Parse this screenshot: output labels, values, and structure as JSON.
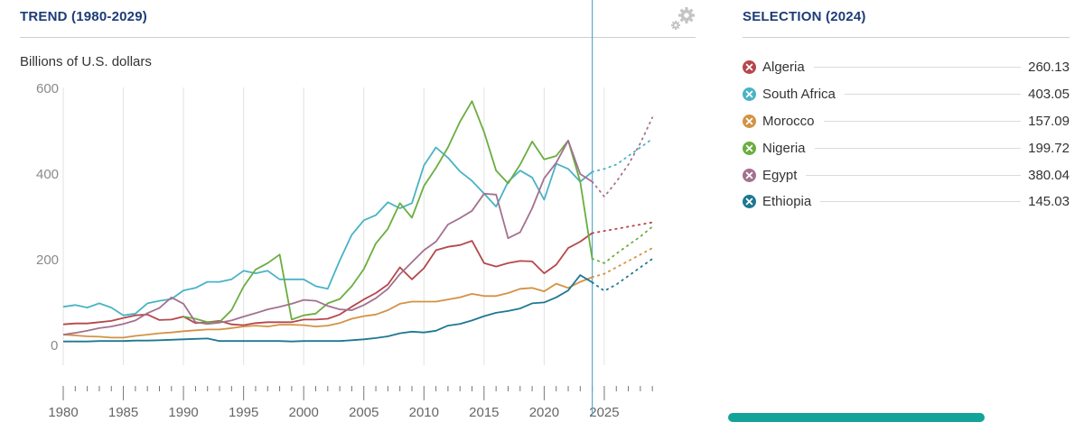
{
  "trend_panel": {
    "title": "TREND (1980-2029)",
    "unit_label": "Billions of U.S. dollars",
    "settings_icon": "gears-icon"
  },
  "selection_panel": {
    "title": "SELECTION (2024)",
    "items": [
      {
        "name": "Algeria",
        "value": "260.13",
        "color": "#b5474b",
        "icon": "remove-x-icon"
      },
      {
        "name": "South Africa",
        "value": "403.05",
        "color": "#49b3c6",
        "icon": "remove-x-icon"
      },
      {
        "name": "Morocco",
        "value": "157.09",
        "color": "#d39245",
        "icon": "remove-x-icon"
      },
      {
        "name": "Nigeria",
        "value": "199.72",
        "color": "#6aae3e",
        "icon": "remove-x-icon"
      },
      {
        "name": "Egypt",
        "value": "380.04",
        "color": "#a3718f",
        "icon": "remove-x-icon"
      },
      {
        "name": "Ethiopia",
        "value": "145.03",
        "color": "#1d7891",
        "icon": "remove-x-icon"
      }
    ]
  },
  "chart_data": {
    "type": "line",
    "title": "TREND (1980-2029)",
    "ylabel": "Billions of U.S. dollars",
    "xlabel": "",
    "ylim": [
      0,
      600
    ],
    "yticks": [
      0,
      200,
      400,
      600
    ],
    "xticks": [
      1980,
      1985,
      1990,
      1995,
      2000,
      2005,
      2010,
      2015,
      2020,
      2025
    ],
    "x_range": [
      1980,
      2029
    ],
    "selected_year": 2024,
    "projection_start": 2024,
    "grid": "vertical",
    "legend_position": "right",
    "x": [
      1980,
      1981,
      1982,
      1983,
      1984,
      1985,
      1986,
      1987,
      1988,
      1989,
      1990,
      1991,
      1992,
      1993,
      1994,
      1995,
      1996,
      1997,
      1998,
      1999,
      2000,
      2001,
      2002,
      2003,
      2004,
      2005,
      2006,
      2007,
      2008,
      2009,
      2010,
      2011,
      2012,
      2013,
      2014,
      2015,
      2016,
      2017,
      2018,
      2019,
      2020,
      2021,
      2022,
      2023,
      2024,
      2025,
      2026,
      2027,
      2028,
      2029
    ],
    "series": [
      {
        "name": "Algeria",
        "color": "#b5474b",
        "values": [
          47,
          49,
          49,
          52,
          55,
          62,
          68,
          70,
          57,
          58,
          65,
          50,
          52,
          55,
          47,
          45,
          50,
          52,
          52,
          52,
          58,
          58,
          60,
          70,
          88,
          105,
          120,
          140,
          180,
          152,
          178,
          220,
          228,
          232,
          242,
          190,
          182,
          190,
          195,
          194,
          166,
          186,
          225,
          240,
          260,
          265,
          270,
          275,
          280,
          285
        ]
      },
      {
        "name": "South Africa",
        "color": "#49b3c6",
        "values": [
          88,
          92,
          86,
          96,
          86,
          68,
          72,
          96,
          102,
          106,
          126,
          132,
          146,
          146,
          152,
          172,
          166,
          172,
          152,
          152,
          152,
          136,
          130,
          196,
          256,
          290,
          302,
          332,
          318,
          330,
          418,
          460,
          436,
          404,
          382,
          352,
          322,
          380,
          406,
          390,
          338,
          422,
          410,
          380,
          403,
          410,
          420,
          440,
          460,
          480
        ]
      },
      {
        "name": "Morocco",
        "color": "#d39245",
        "values": [
          23,
          21,
          19,
          18,
          16,
          16,
          20,
          23,
          26,
          28,
          31,
          33,
          35,
          35,
          38,
          42,
          44,
          42,
          46,
          46,
          45,
          42,
          44,
          50,
          60,
          66,
          70,
          80,
          95,
          100,
          100,
          100,
          105,
          110,
          118,
          113,
          113,
          120,
          130,
          132,
          124,
          142,
          132,
          146,
          157,
          165,
          180,
          195,
          210,
          225
        ]
      },
      {
        "name": "Nigeria",
        "color": "#6aae3e",
        "values": [
          null,
          null,
          null,
          null,
          null,
          null,
          null,
          null,
          null,
          null,
          65,
          60,
          52,
          52,
          80,
          135,
          175,
          190,
          210,
          58,
          68,
          72,
          96,
          106,
          136,
          176,
          236,
          270,
          330,
          296,
          370,
          412,
          460,
          520,
          568,
          496,
          406,
          376,
          420,
          474,
          432,
          440,
          476,
          380,
          200,
          190,
          212,
          232,
          252,
          275
        ]
      },
      {
        "name": "Egypt",
        "color": "#a3718f",
        "values": [
          23,
          27,
          32,
          38,
          42,
          48,
          56,
          73,
          85,
          110,
          95,
          52,
          48,
          51,
          56,
          65,
          73,
          82,
          88,
          95,
          104,
          102,
          90,
          82,
          80,
          92,
          108,
          130,
          164,
          192,
          220,
          240,
          280,
          295,
          312,
          352,
          350,
          248,
          262,
          318,
          388,
          424,
          476,
          398,
          380,
          345,
          380,
          420,
          470,
          530
        ]
      },
      {
        "name": "Ethiopia",
        "color": "#1d7891",
        "values": [
          7,
          7,
          7,
          8,
          8,
          8,
          9,
          9,
          10,
          11,
          12,
          13,
          14,
          8,
          8,
          8,
          8,
          8,
          8,
          7,
          8,
          8,
          8,
          8,
          10,
          12,
          15,
          19,
          26,
          30,
          28,
          32,
          44,
          48,
          56,
          66,
          74,
          78,
          84,
          96,
          98,
          110,
          126,
          162,
          145,
          125,
          140,
          160,
          180,
          200
        ]
      }
    ],
    "latest_values_2024": {
      "Algeria": 260.13,
      "South Africa": 403.05,
      "Morocco": 157.09,
      "Nigeria": 199.72,
      "Egypt": 380.04,
      "Ethiopia": 145.03
    }
  }
}
